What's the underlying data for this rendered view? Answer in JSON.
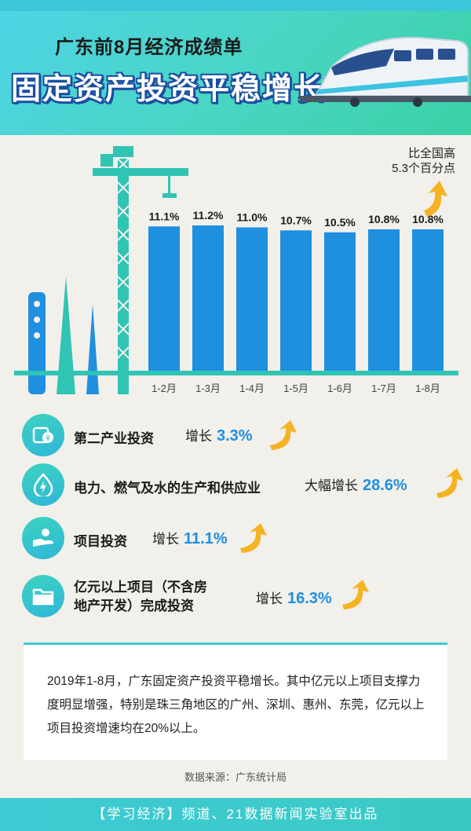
{
  "header": {
    "title": "广东前8月经济成绩单",
    "subtitle": "固定资产投资平稳增长"
  },
  "colors": {
    "bar": "#1f8fe0",
    "teal": "#2fc4b4",
    "header_gradient_start": "#4fd4e6",
    "header_gradient_end": "#3bd0a6",
    "arrow": "#f5b323"
  },
  "chart_data": {
    "type": "bar",
    "categories": [
      "1-2月",
      "1-3月",
      "1-4月",
      "1-5月",
      "1-6月",
      "1-7月",
      "1-8月"
    ],
    "values": [
      11.1,
      11.2,
      11.0,
      10.7,
      10.5,
      10.8,
      10.8
    ],
    "data_labels": [
      "11.1%",
      "11.2%",
      "11.0%",
      "10.7%",
      "10.5%",
      "10.8%",
      "10.8%"
    ],
    "title": "",
    "xlabel": "",
    "ylabel": "",
    "ylim": [
      0,
      11.5
    ],
    "grid": false,
    "annotation": [
      "比全国高",
      "5.3个百分点"
    ]
  },
  "items": [
    {
      "label": "第二产业投资",
      "grow": "增长",
      "value": "3.3%",
      "icon": "money-icon"
    },
    {
      "label": "电力、燃气及水的生产和供应业",
      "grow": "大幅增长",
      "value": "28.6%",
      "icon": "energy-icon"
    },
    {
      "label": "项目投资",
      "grow": "增长",
      "value": "11.1%",
      "icon": "hand-coin-icon"
    },
    {
      "label_line1": "亿元以上项目（不含房",
      "label_line2": "地产开发）完成投资",
      "grow": "增长",
      "value": "16.3%",
      "icon": "folder-icon"
    }
  ],
  "summary": {
    "text": "2019年1-8月，广东固定资产投资平稳增长。其中亿元以上项目支撑力度明显增强，特别是珠三角地区的广州、深圳、惠州、东莞，亿元以上项目投资增速均在20%以上。",
    "source": "数据来源：广东统计局"
  },
  "footer": {
    "text": "【学习经济】频道、21数据新闻实验室出品"
  }
}
